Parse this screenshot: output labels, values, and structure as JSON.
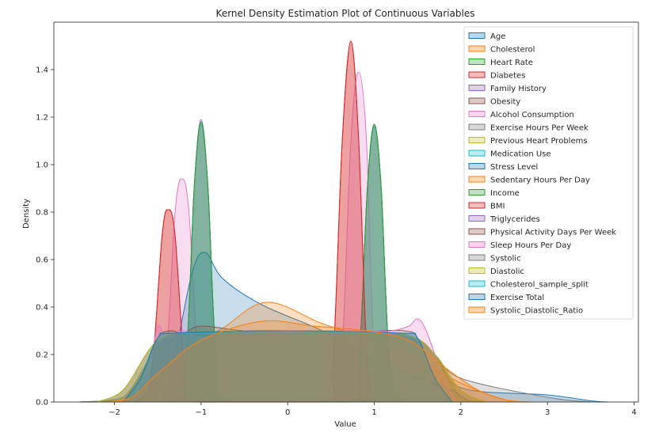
{
  "chart_data": {
    "type": "area",
    "title": "Kernel Density Estimation Plot of Continuous Variables",
    "xlabel": "Value",
    "ylabel": "Density",
    "xlim": [
      -2.7,
      4.05
    ],
    "ylim": [
      0,
      1.6
    ],
    "xticks": [
      -2,
      -1,
      0,
      1,
      2,
      3,
      4
    ],
    "yticks": [
      0.0,
      0.2,
      0.4,
      0.6,
      0.8,
      1.0,
      1.2,
      1.4
    ],
    "ytick_labels": [
      "0.0",
      "0.2",
      "0.4",
      "0.6",
      "0.8",
      "1.0",
      "1.2",
      "1.4"
    ],
    "grid": false,
    "legend_position": "top-right",
    "series": [
      {
        "name": "Age",
        "color": "#1f77b4",
        "points": [
          [
            -2.4,
            0
          ],
          [
            -1.9,
            0.02
          ],
          [
            -1.6,
            0.18
          ],
          [
            -1.4,
            0.27
          ],
          [
            -1.0,
            0.29
          ],
          [
            0,
            0.3
          ],
          [
            0.8,
            0.29
          ],
          [
            1.4,
            0.28
          ],
          [
            1.7,
            0.2
          ],
          [
            2.0,
            0.06
          ],
          [
            3.0,
            0.03
          ],
          [
            3.5,
            0.005
          ],
          [
            3.7,
            0
          ]
        ]
      },
      {
        "name": "Cholesterol",
        "color": "#ff7f0e",
        "points": [
          [
            -2.4,
            0
          ],
          [
            -1.9,
            0.02
          ],
          [
            -1.6,
            0.18
          ],
          [
            -1.4,
            0.27
          ],
          [
            -1.0,
            0.29
          ],
          [
            0,
            0.29
          ],
          [
            0.8,
            0.29
          ],
          [
            1.4,
            0.28
          ],
          [
            1.7,
            0.2
          ],
          [
            2.0,
            0.02
          ],
          [
            2.3,
            0
          ]
        ]
      },
      {
        "name": "Heart Rate",
        "color": "#2ca02c",
        "points": [
          [
            -2.3,
            0
          ],
          [
            -1.9,
            0.02
          ],
          [
            -1.6,
            0.18
          ],
          [
            -1.4,
            0.27
          ],
          [
            -1.0,
            0.28
          ],
          [
            0,
            0.29
          ],
          [
            0.8,
            0.29
          ],
          [
            1.4,
            0.28
          ],
          [
            1.7,
            0.2
          ],
          [
            2.0,
            0.02
          ],
          [
            2.3,
            0
          ]
        ]
      },
      {
        "name": "Diabetes",
        "color": "#d62728",
        "points": [
          [
            -1.75,
            0
          ],
          [
            -1.58,
            0.1
          ],
          [
            -1.45,
            0.7
          ],
          [
            -1.38,
            0.81
          ],
          [
            -1.3,
            0.7
          ],
          [
            -1.18,
            0.1
          ],
          [
            -1.05,
            0
          ],
          [
            0.4,
            0
          ],
          [
            0.52,
            0.15
          ],
          [
            0.63,
            1.1
          ],
          [
            0.73,
            1.52
          ],
          [
            0.82,
            1.1
          ],
          [
            0.92,
            0.15
          ],
          [
            1.02,
            0
          ]
        ]
      },
      {
        "name": "Family History",
        "color": "#9467bd",
        "points": [
          [
            -1.35,
            0
          ],
          [
            -1.18,
            0.15
          ],
          [
            -1.08,
            0.9
          ],
          [
            -1.0,
            1.19
          ],
          [
            -0.92,
            0.9
          ],
          [
            -0.82,
            0.15
          ],
          [
            -0.66,
            0
          ],
          [
            0.7,
            0
          ],
          [
            0.82,
            0.15
          ],
          [
            0.92,
            0.9
          ],
          [
            1.0,
            1.17
          ],
          [
            1.08,
            0.9
          ],
          [
            1.18,
            0.15
          ],
          [
            1.34,
            0
          ]
        ]
      },
      {
        "name": "Obesity",
        "color": "#8c564b",
        "points": [
          [
            -1.35,
            0
          ],
          [
            -1.18,
            0.15
          ],
          [
            -1.08,
            0.9
          ],
          [
            -1.0,
            1.18
          ],
          [
            -0.92,
            0.9
          ],
          [
            -0.82,
            0.15
          ],
          [
            -0.66,
            0
          ],
          [
            0.7,
            0
          ],
          [
            0.82,
            0.15
          ],
          [
            0.92,
            0.9
          ],
          [
            1.0,
            1.17
          ],
          [
            1.08,
            0.9
          ],
          [
            1.18,
            0.15
          ],
          [
            1.34,
            0
          ]
        ]
      },
      {
        "name": "Alcohol Consumption",
        "color": "#e377c2",
        "points": [
          [
            -1.6,
            0
          ],
          [
            -1.42,
            0.12
          ],
          [
            -1.3,
            0.8
          ],
          [
            -1.22,
            0.94
          ],
          [
            -1.14,
            0.8
          ],
          [
            -1.02,
            0.12
          ],
          [
            -0.85,
            0
          ],
          [
            0.5,
            0
          ],
          [
            0.62,
            0.15
          ],
          [
            0.73,
            1.1
          ],
          [
            0.82,
            1.39
          ],
          [
            0.91,
            1.1
          ],
          [
            1.0,
            0.15
          ],
          [
            1.12,
            0
          ]
        ]
      },
      {
        "name": "Exercise Hours Per Week",
        "color": "#7f7f7f",
        "points": [
          [
            -2.4,
            0
          ],
          [
            -1.9,
            0.02
          ],
          [
            -1.6,
            0.18
          ],
          [
            -1.4,
            0.27
          ],
          [
            -1.0,
            0.29
          ],
          [
            0,
            0.3
          ],
          [
            0.8,
            0.29
          ],
          [
            1.4,
            0.28
          ],
          [
            1.7,
            0.2
          ],
          [
            2.0,
            0.1
          ],
          [
            3.0,
            0.02
          ],
          [
            3.5,
            0
          ]
        ]
      },
      {
        "name": "Previous Heart Problems",
        "color": "#bcbd22",
        "points": [
          [
            -2.2,
            0
          ],
          [
            -1.9,
            0.05
          ],
          [
            -1.6,
            0.22
          ],
          [
            -1.4,
            0.28
          ],
          [
            -1.0,
            0.29
          ],
          [
            0,
            0.29
          ],
          [
            0.8,
            0.29
          ],
          [
            1.4,
            0.28
          ],
          [
            1.7,
            0.2
          ],
          [
            2.0,
            0.05
          ],
          [
            2.3,
            0
          ]
        ]
      },
      {
        "name": "Medication Use",
        "color": "#17becf",
        "points": [
          [
            -1.35,
            0
          ],
          [
            -1.18,
            0.15
          ],
          [
            -1.08,
            0.9
          ],
          [
            -1.0,
            1.17
          ],
          [
            -0.92,
            0.9
          ],
          [
            -0.82,
            0.15
          ],
          [
            -0.66,
            0
          ],
          [
            0.7,
            0
          ],
          [
            0.82,
            0.15
          ],
          [
            0.92,
            0.9
          ],
          [
            1.0,
            1.16
          ],
          [
            1.08,
            0.9
          ],
          [
            1.18,
            0.15
          ],
          [
            1.34,
            0
          ]
        ]
      },
      {
        "name": "Stress Level",
        "color": "#1f77b4",
        "points": [
          [
            -1.45,
            0
          ],
          [
            -1.3,
            0.2
          ],
          [
            -1.1,
            0.55
          ],
          [
            -0.95,
            0.63
          ],
          [
            -0.75,
            0.52
          ],
          [
            -0.3,
            0.41
          ],
          [
            0.4,
            0.3
          ],
          [
            1.0,
            0.18
          ],
          [
            1.5,
            0.1
          ],
          [
            1.9,
            0.05
          ],
          [
            2.1,
            0
          ]
        ]
      },
      {
        "name": "Sedentary Hours Per Day",
        "color": "#ff7f0e",
        "points": [
          [
            -2.0,
            0
          ],
          [
            -1.7,
            0.05
          ],
          [
            -1.4,
            0.2
          ],
          [
            -0.8,
            0.3
          ],
          [
            -0.25,
            0.42
          ],
          [
            0.4,
            0.33
          ],
          [
            1.0,
            0.26
          ],
          [
            1.5,
            0.18
          ],
          [
            2.0,
            0.08
          ],
          [
            2.5,
            0.01
          ],
          [
            2.8,
            0
          ]
        ]
      },
      {
        "name": "Income",
        "color": "#2ca02c",
        "points": [
          [
            -1.35,
            0
          ],
          [
            -1.18,
            0.15
          ],
          [
            -1.08,
            0.9
          ],
          [
            -1.0,
            1.18
          ],
          [
            -0.92,
            0.9
          ],
          [
            -0.82,
            0.15
          ],
          [
            -0.66,
            0
          ],
          [
            0.7,
            0
          ],
          [
            0.82,
            0.15
          ],
          [
            0.92,
            0.9
          ],
          [
            1.0,
            1.17
          ],
          [
            1.08,
            0.9
          ],
          [
            1.18,
            0.15
          ],
          [
            1.34,
            0
          ]
        ]
      },
      {
        "name": "BMI",
        "color": "#d62728",
        "points": [
          [
            -1.75,
            0
          ],
          [
            -1.58,
            0.1
          ],
          [
            -1.45,
            0.7
          ],
          [
            -1.38,
            0.81
          ],
          [
            -1.3,
            0.7
          ],
          [
            -1.18,
            0.1
          ],
          [
            -1.05,
            0
          ],
          [
            0.4,
            0
          ],
          [
            0.52,
            0.15
          ],
          [
            0.63,
            1.1
          ],
          [
            0.73,
            1.52
          ],
          [
            0.82,
            1.1
          ],
          [
            0.92,
            0.15
          ],
          [
            1.02,
            0
          ]
        ]
      },
      {
        "name": "Triglycerides",
        "color": "#9467bd",
        "points": [
          [
            -2.2,
            0
          ],
          [
            -1.9,
            0.05
          ],
          [
            -1.6,
            0.22
          ],
          [
            -1.4,
            0.28
          ],
          [
            -1.0,
            0.29
          ],
          [
            0,
            0.29
          ],
          [
            0.8,
            0.29
          ],
          [
            1.4,
            0.28
          ],
          [
            1.7,
            0.2
          ],
          [
            2.0,
            0.05
          ],
          [
            2.3,
            0
          ]
        ]
      },
      {
        "name": "Physical Activity Days Per Week",
        "color": "#8c564b",
        "points": [
          [
            -1.9,
            0
          ],
          [
            -1.7,
            0.1
          ],
          [
            -1.5,
            0.27
          ],
          [
            -1.35,
            0.3
          ],
          [
            -1.2,
            0.29
          ],
          [
            -1.0,
            0.32
          ],
          [
            -0.5,
            0.3
          ],
          [
            0,
            0.3
          ],
          [
            0.5,
            0.3
          ],
          [
            1.0,
            0.3
          ],
          [
            1.35,
            0.3
          ],
          [
            1.5,
            0.27
          ],
          [
            1.7,
            0.1
          ],
          [
            1.9,
            0
          ]
        ]
      },
      {
        "name": "Sleep Hours Per Day",
        "color": "#e377c2",
        "points": [
          [
            -1.8,
            0
          ],
          [
            -1.6,
            0.15
          ],
          [
            -1.5,
            0.32
          ],
          [
            -1.4,
            0.27
          ],
          [
            -1.2,
            0.3
          ],
          [
            -1.0,
            0.27
          ],
          [
            -0.5,
            0.3
          ],
          [
            0,
            0.3
          ],
          [
            0.5,
            0.3
          ],
          [
            1.0,
            0.3
          ],
          [
            1.2,
            0.3
          ],
          [
            1.4,
            0.32
          ],
          [
            1.5,
            0.35
          ],
          [
            1.6,
            0.3
          ],
          [
            1.8,
            0.1
          ],
          [
            1.95,
            0
          ]
        ]
      },
      {
        "name": "Systolic",
        "color": "#7f7f7f",
        "points": [
          [
            -2.2,
            0
          ],
          [
            -1.9,
            0.05
          ],
          [
            -1.6,
            0.22
          ],
          [
            -1.4,
            0.28
          ],
          [
            -1.0,
            0.29
          ],
          [
            0,
            0.29
          ],
          [
            0.8,
            0.29
          ],
          [
            1.4,
            0.28
          ],
          [
            1.7,
            0.2
          ],
          [
            2.0,
            0.05
          ],
          [
            2.3,
            0
          ]
        ]
      },
      {
        "name": "Diastolic",
        "color": "#bcbd22",
        "points": [
          [
            -2.2,
            0
          ],
          [
            -1.9,
            0.05
          ],
          [
            -1.6,
            0.22
          ],
          [
            -1.4,
            0.28
          ],
          [
            -1.0,
            0.29
          ],
          [
            0,
            0.29
          ],
          [
            0.8,
            0.29
          ],
          [
            1.4,
            0.28
          ],
          [
            1.7,
            0.2
          ],
          [
            2.0,
            0.05
          ],
          [
            2.3,
            0
          ]
        ]
      },
      {
        "name": "Cholesterol_sample_split",
        "color": "#17becf",
        "points": [
          [
            -1.9,
            0
          ],
          [
            -1.7,
            0.1
          ],
          [
            -1.5,
            0.27
          ],
          [
            -1.3,
            0.29
          ],
          [
            0,
            0.29
          ],
          [
            1.3,
            0.29
          ],
          [
            1.5,
            0.27
          ],
          [
            1.7,
            0.1
          ],
          [
            1.9,
            0
          ]
        ]
      },
      {
        "name": "Exercise Total",
        "color": "#1f77b4",
        "points": [
          [
            -1.9,
            0
          ],
          [
            -1.7,
            0.1
          ],
          [
            -1.5,
            0.27
          ],
          [
            -1.3,
            0.29
          ],
          [
            0,
            0.3
          ],
          [
            1.3,
            0.29
          ],
          [
            1.5,
            0.27
          ],
          [
            1.7,
            0.1
          ],
          [
            1.9,
            0
          ]
        ]
      },
      {
        "name": "Systolic_Diastolic_Ratio",
        "color": "#ff7f0e",
        "points": [
          [
            -2.1,
            0
          ],
          [
            -1.8,
            0.02
          ],
          [
            -1.5,
            0.12
          ],
          [
            -1.0,
            0.26
          ],
          [
            -0.3,
            0.34
          ],
          [
            0.3,
            0.32
          ],
          [
            0.9,
            0.3
          ],
          [
            1.4,
            0.26
          ],
          [
            1.8,
            0.15
          ],
          [
            2.2,
            0.05
          ],
          [
            2.6,
            0
          ]
        ]
      }
    ]
  }
}
